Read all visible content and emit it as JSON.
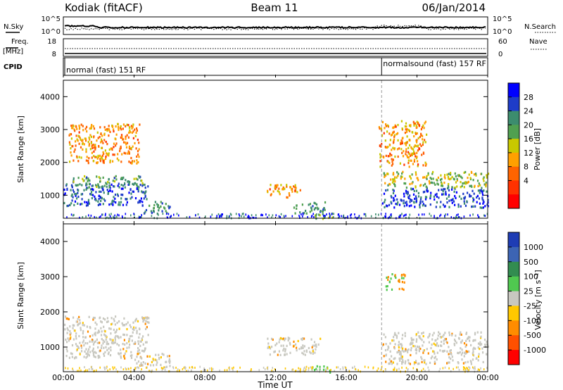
{
  "header": {
    "station": "Kodiak (fitACF)",
    "beam": "Beam 11",
    "date": "06/Jan/2014"
  },
  "top_panels": {
    "nsky_label": "N.Sky",
    "nsky_ticks": [
      "10^5",
      "10^0"
    ],
    "nsearch_label": "N.Search",
    "nsearch_ticks": [
      "10^5",
      "10^0"
    ],
    "freq_label": "Freq.",
    "freq_unit": "[MHz]",
    "freq_ticks": [
      "18",
      "8"
    ],
    "nave_label": "Nave",
    "nave_ticks": [
      "60",
      "0"
    ],
    "cpid_label": "CPID",
    "cpid_segments": [
      {
        "label": "normal (fast) 151 RF",
        "start_hour": 0
      },
      {
        "label": "normalsound (fast) 157 RF",
        "start_hour": 18
      }
    ]
  },
  "colors": {
    "power_scale": [
      "#0000ff",
      "#1e3cc8",
      "#3c8c6e",
      "#50a050",
      "#c8c800",
      "#ffa000",
      "#ff6400",
      "#ff3200",
      "#ff0000"
    ],
    "velocity_scale": [
      "#1e3cb4",
      "#3c64b4",
      "#328c50",
      "#50c850",
      "#c8c8c0",
      "#ffc800",
      "#ff8c00",
      "#ff5000",
      "#ff0000"
    ]
  },
  "chart_data": [
    {
      "type": "heatmap",
      "name": "Power panel",
      "ylabel": "Slant Range [km]",
      "yticks": [
        "4000",
        "3000",
        "2000",
        "1000"
      ],
      "ylim": [
        300,
        4500
      ],
      "xlim": [
        0,
        24
      ],
      "colorbar": {
        "label": "Power [dB]",
        "ticks": [
          "28",
          "24",
          "20",
          "16",
          "12",
          "8",
          "4"
        ],
        "range": [
          0,
          30
        ]
      },
      "echo_regions": [
        {
          "t_start": 0.0,
          "t_end": 4.8,
          "range_center": 1050,
          "range_width": 700,
          "level": 26
        },
        {
          "t_start": 0.5,
          "t_end": 4.5,
          "range_center": 1450,
          "range_width": 350,
          "level": 20
        },
        {
          "t_start": 0.3,
          "t_end": 4.3,
          "range_center": 2600,
          "range_width": 1200,
          "level": 10
        },
        {
          "t_start": 4.5,
          "t_end": 6.0,
          "range_center": 650,
          "range_width": 400,
          "level": 22
        },
        {
          "t_start": 11.5,
          "t_end": 13.5,
          "range_center": 1150,
          "range_width": 400,
          "level": 10
        },
        {
          "t_start": 13.0,
          "t_end": 14.8,
          "range_center": 650,
          "range_width": 350,
          "level": 22
        },
        {
          "t_start": 14.0,
          "t_end": 15.2,
          "range_center": 400,
          "range_width": 200,
          "level": 18
        },
        {
          "t_start": 18.0,
          "t_end": 24.0,
          "range_center": 950,
          "range_width": 600,
          "level": 26
        },
        {
          "t_start": 18.0,
          "t_end": 24.0,
          "range_center": 1500,
          "range_width": 500,
          "level": 16
        },
        {
          "t_start": 17.8,
          "t_end": 20.5,
          "range_center": 2600,
          "range_width": 1400,
          "level": 10
        }
      ]
    },
    {
      "type": "heatmap",
      "name": "Velocity panel",
      "xlabel": "Time UT",
      "ylabel": "Slant Range [km]",
      "xticks": [
        "00:00",
        "04:00",
        "08:00",
        "12:00",
        "16:00",
        "20:00",
        "00:00"
      ],
      "xtick_hours": [
        0,
        4,
        8,
        12,
        16,
        20,
        24
      ],
      "yticks": [
        "4000",
        "3000",
        "2000",
        "1000"
      ],
      "ylim": [
        300,
        4500
      ],
      "xlim": [
        0,
        24
      ],
      "colorbar": {
        "label": "Velocity [m s⁻¹]",
        "ticks": [
          "1000",
          "500",
          "100",
          "25",
          "-25",
          "-100",
          "-500",
          "-1000"
        ]
      },
      "echo_regions": [
        {
          "t_start": 0.0,
          "t_end": 4.8,
          "range_center": 1300,
          "range_width": 1200,
          "level": 0
        },
        {
          "t_start": 4.0,
          "t_end": 6.0,
          "range_center": 650,
          "range_width": 400,
          "level": 0
        },
        {
          "t_start": 11.5,
          "t_end": 14.5,
          "range_center": 1050,
          "range_width": 500,
          "level": 0
        },
        {
          "t_start": 14.0,
          "t_end": 15.2,
          "range_center": 400,
          "range_width": 200,
          "level": 50
        },
        {
          "t_start": 18.0,
          "t_end": 24.0,
          "range_center": 1000,
          "range_width": 900,
          "level": 0
        },
        {
          "t_start": 18.2,
          "t_end": 19.3,
          "range_center": 2900,
          "range_width": 500,
          "level": 100
        }
      ]
    }
  ]
}
